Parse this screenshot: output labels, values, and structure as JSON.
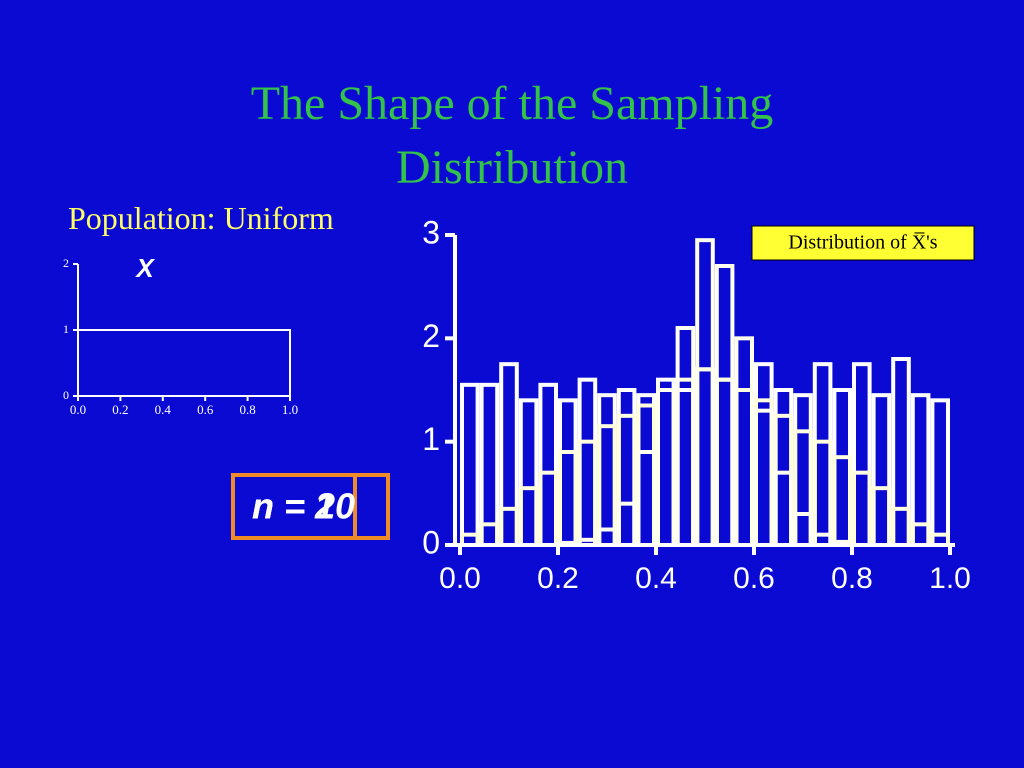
{
  "title": "The Shape of the Sampling Distribution",
  "chart_data": [
    {
      "type": "line",
      "title": "Population: Uniform",
      "xlabel": "X",
      "x": [
        0,
        1,
        1
      ],
      "values": [
        1,
        1,
        0
      ],
      "color": "#ffffff",
      "xlim": [
        0,
        1
      ],
      "ylim": [
        0,
        2
      ],
      "xticks": [
        {
          "value": 0,
          "label": "0.0"
        },
        {
          "value": 0.2,
          "label": "0.2"
        },
        {
          "value": 0.4,
          "label": "0.4"
        },
        {
          "value": 0.6,
          "label": "0.6"
        },
        {
          "value": 0.8,
          "label": "0.8"
        },
        {
          "value": 1,
          "label": "1.0"
        }
      ],
      "yticks": [
        0,
        1,
        2
      ]
    },
    {
      "type": "histogram",
      "title": "Distribution of X̅'s",
      "bins": [
        0,
        0.04,
        0.08,
        0.12,
        0.16,
        0.2,
        0.24,
        0.28,
        0.32,
        0.36,
        0.4,
        0.44,
        0.48,
        0.52,
        0.56,
        0.6,
        0.64,
        0.68,
        0.72,
        0.76,
        0.8,
        0.84,
        0.88,
        0.92,
        0.96,
        1
      ],
      "series": [
        {
          "name": "n = 1",
          "color": "#ffffff",
          "values": [
            1.55,
            1.55,
            1.75,
            1.4,
            1.55,
            1.4,
            1.6,
            1.45,
            1.5,
            1.45,
            1.6,
            1.5,
            1.7,
            1.6,
            1.5,
            1.75,
            1.5,
            1.45,
            1.75,
            1.5,
            1.75,
            1.45,
            1.8,
            1.45,
            1.4
          ]
        },
        {
          "name": "n = 2",
          "color": "#ffffe0",
          "values": [
            0.1,
            0.2,
            0.35,
            0.55,
            0.7,
            0.9,
            1.0,
            1.15,
            1.25,
            1.35,
            1.5,
            1.6,
            1.7,
            1.6,
            1.5,
            1.4,
            1.25,
            1.1,
            1.0,
            0.85,
            0.7,
            0.55,
            0.35,
            0.2,
            0.1
          ]
        },
        {
          "name": "n = 10",
          "color": "#fffff0",
          "values": [
            0,
            0,
            0,
            0,
            0,
            0.02,
            0.05,
            0.15,
            0.4,
            0.9,
            1.5,
            2.1,
            2.95,
            2.7,
            2.0,
            1.3,
            0.7,
            0.3,
            0.1,
            0.03,
            0,
            0,
            0,
            0,
            0
          ]
        }
      ],
      "xlim": [
        0,
        1
      ],
      "ylim": [
        0,
        3
      ],
      "xticks": [
        {
          "value": 0,
          "label": "0.0"
        },
        {
          "value": 0.2,
          "label": "0.2"
        },
        {
          "value": 0.4,
          "label": "0.4"
        },
        {
          "value": 0.6,
          "label": "0.6"
        },
        {
          "value": 0.8,
          "label": "0.8"
        },
        {
          "value": 1,
          "label": "1.0"
        }
      ],
      "yticks": [
        0,
        1,
        2,
        3
      ]
    }
  ]
}
